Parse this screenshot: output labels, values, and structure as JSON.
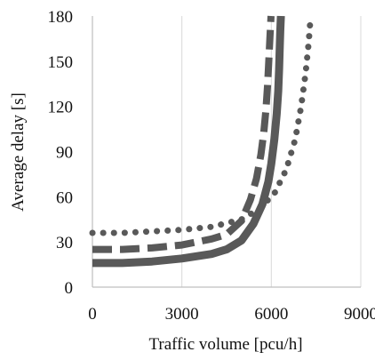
{
  "chart_data": {
    "type": "line",
    "title": "",
    "xlabel": "Traffic volume [pcu/h]",
    "ylabel": "Average delay [s]",
    "xlim": [
      0,
      9000
    ],
    "ylim": [
      0,
      180
    ],
    "xticks": [
      0,
      3000,
      6000,
      9000
    ],
    "yticks": [
      0,
      30,
      60,
      90,
      120,
      150,
      180
    ],
    "xtick_labels": [
      "0",
      "3000",
      "6000",
      "9000"
    ],
    "ytick_labels": [
      "0",
      "30",
      "60",
      "90",
      "120",
      "150",
      "180"
    ],
    "grid": "vertical gridlines",
    "legend": "none",
    "colors": {
      "series": "#595959",
      "grid": "#d9d9d9",
      "axis": "#bfbfbf"
    },
    "series": [
      {
        "line_style": "solid",
        "x": [
          0,
          1000,
          2000,
          3000,
          4000,
          4500,
          5000,
          5400,
          5700,
          5900,
          6000,
          6100,
          6180,
          6230,
          6260,
          6280,
          6300,
          6320
        ],
        "values": [
          16,
          16,
          17,
          19,
          22,
          25,
          31,
          42,
          55,
          70,
          82,
          98,
          115,
          130,
          145,
          157,
          170,
          180
        ]
      },
      {
        "line_style": "dashed",
        "x": [
          0,
          1000,
          2000,
          3000,
          4000,
          4500,
          5000,
          5300,
          5500,
          5650,
          5750,
          5820,
          5870,
          5910,
          5950,
          5990
        ],
        "values": [
          25,
          25,
          26,
          28,
          32,
          35,
          44,
          58,
          72,
          88,
          103,
          118,
          133,
          148,
          165,
          180
        ]
      },
      {
        "line_style": "dotted",
        "x": [
          0,
          1000,
          2000,
          3000,
          4000,
          5000,
          5600,
          6100,
          6500,
          6800,
          7000,
          7150,
          7250,
          7320
        ],
        "values": [
          36,
          36,
          37,
          38,
          40,
          45,
          52,
          62,
          78,
          98,
          120,
          142,
          162,
          180
        ]
      }
    ]
  }
}
